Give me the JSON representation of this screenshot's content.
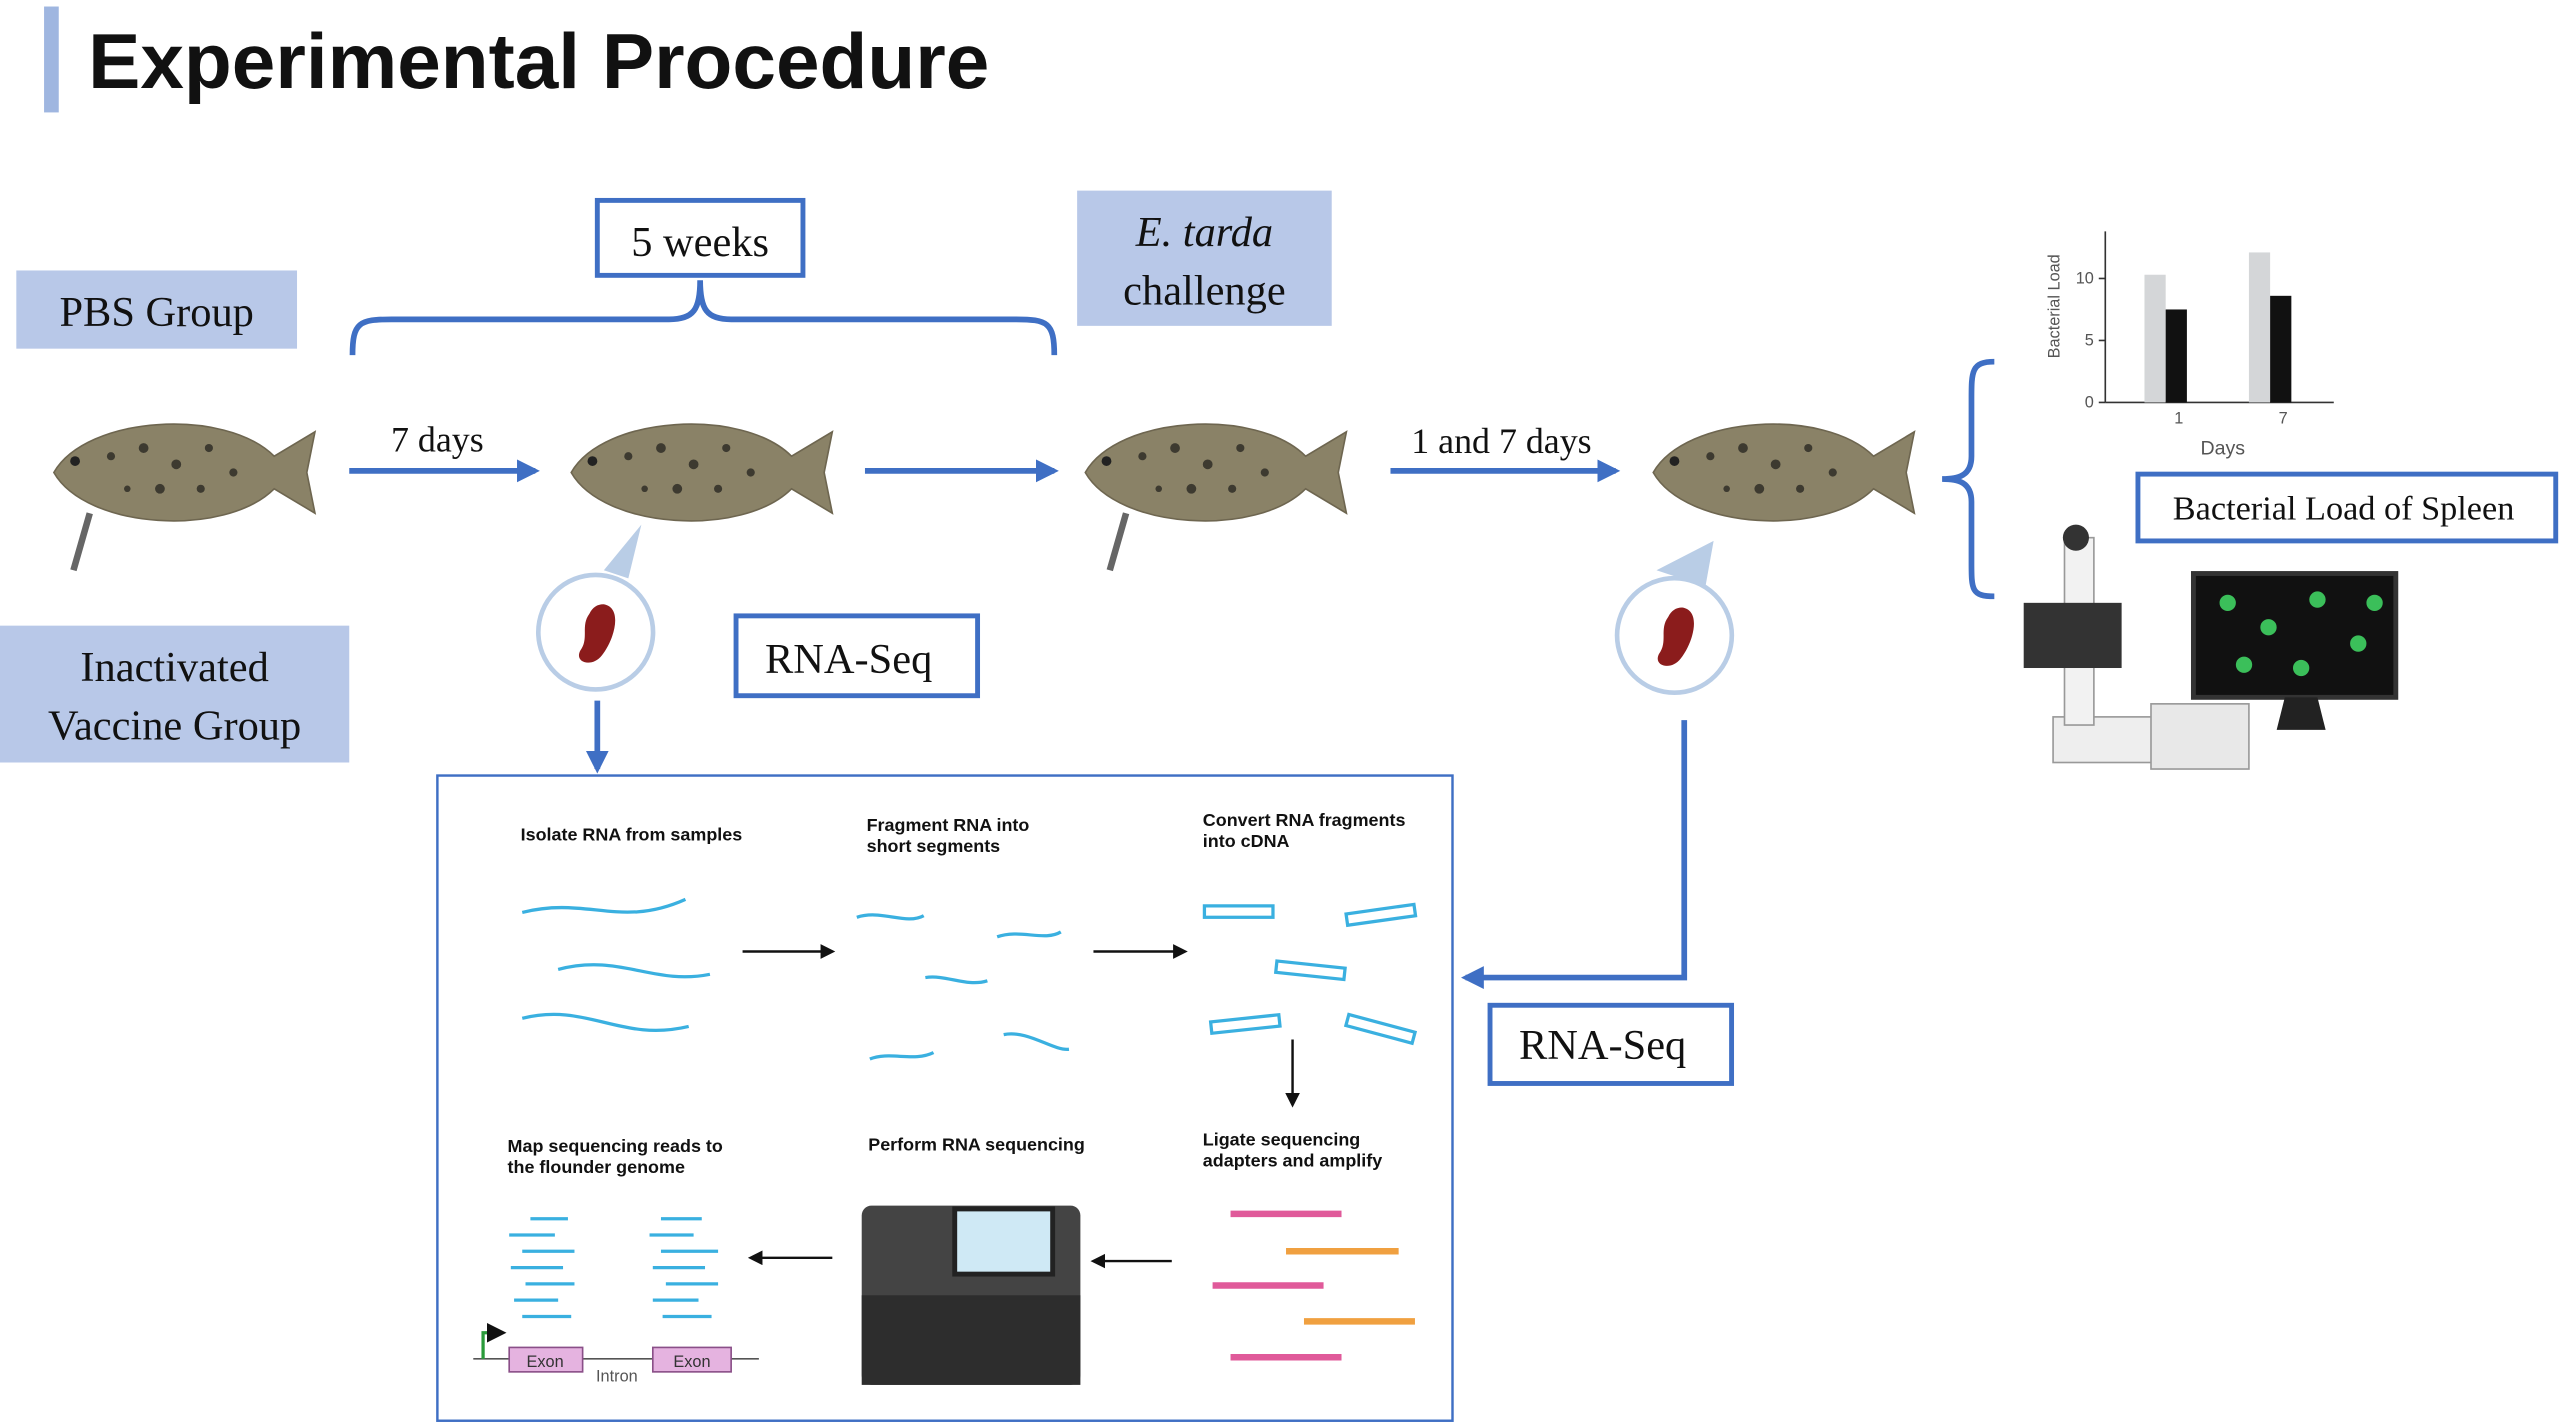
{
  "title": "Experimental Procedure",
  "groups": {
    "pbs": [
      "PBS Group"
    ],
    "vaccine": [
      "Inactivated",
      "Vaccine Group"
    ]
  },
  "timeline": {
    "period": "5 weeks",
    "first_interval": "7 days",
    "challenge": [
      "E. tarda",
      "challenge"
    ],
    "second_interval": "1 and 7 days"
  },
  "rnaseq_labels": [
    "RNA-Seq",
    "RNA-Seq"
  ],
  "outcome": "Bacterial Load of Spleen",
  "mini_chart": {
    "type": "bar",
    "y_label": "Bacterial Load",
    "x_label": "Days",
    "categories": [
      "1",
      "7"
    ],
    "series": [
      {
        "color": "#d4d6d8",
        "values": [
          10.3,
          12.1
        ]
      },
      {
        "color": "#111111",
        "values": [
          7.5,
          8.6
        ]
      }
    ],
    "ylim": [
      0,
      13.8
    ],
    "yticks": [
      0,
      5,
      10
    ]
  },
  "workflow": {
    "steps": [
      [
        "Isolate RNA from samples"
      ],
      [
        "Fragment RNA into",
        "short segments"
      ],
      [
        "Convert RNA fragments",
        "into cDNA"
      ],
      [
        "Ligate sequencing",
        "adapters and amplify"
      ],
      [
        "Perform RNA sequencing"
      ],
      [
        "Map sequencing reads to",
        "the flounder genome"
      ]
    ],
    "exon_labels": [
      "Exon",
      "Exon"
    ],
    "intron": "Intron"
  }
}
